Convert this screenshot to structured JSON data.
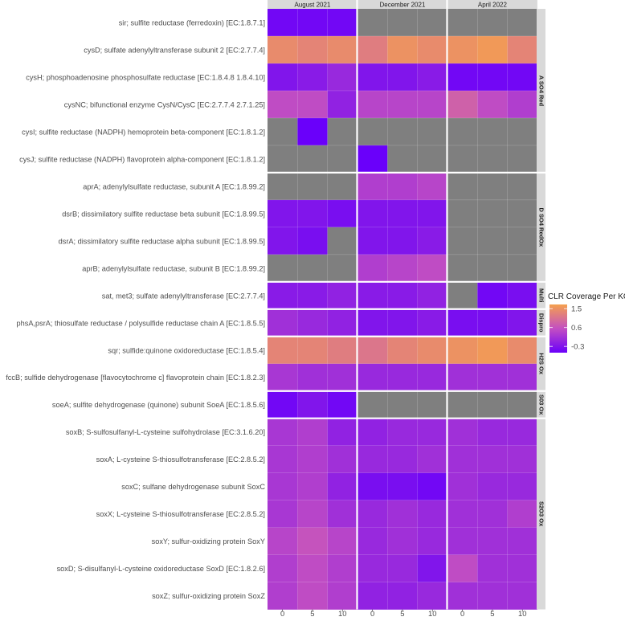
{
  "chart_data": {
    "type": "heatmap",
    "title": "",
    "xlabel": "",
    "ylabel": "",
    "facet_columns": [
      "August 2021",
      "December 2021",
      "April 2022"
    ],
    "x_ticks": [
      "0",
      "5",
      "10"
    ],
    "rows": [
      "sir; sulfite reductase (ferredoxin) [EC:1.8.7.1]",
      "cysD; sulfate adenylyltransferase subunit 2 [EC:2.7.7.4]",
      "cysH; phosphoadenosine phosphosulfate reductase [EC:1.8.4.8 1.8.4.10]",
      "cysNC; bifunctional enzyme CysN/CysC [EC:2.7.7.4 2.7.1.25]",
      "cysI; sulfite reductase (NADPH) hemoprotein beta-component [EC:1.8.1.2]",
      "cysJ; sulfite reductase (NADPH) flavoprotein alpha-component [EC:1.8.1.2]",
      "aprA; adenylylsulfate reductase, subunit A [EC:1.8.99.2]",
      "dsrB; dissimilatory sulfite reductase beta subunit [EC:1.8.99.5]",
      "dsrA; dissimilatory sulfite reductase alpha subunit [EC:1.8.99.5]",
      "aprB; adenylylsulfate reductase, subunit B [EC:1.8.99.2]",
      "sat, met3; sulfate adenylyltransferase [EC:2.7.7.4]",
      "phsA,psrA; thiosulfate reductase / polysulfide reductase chain A [EC:1.8.5.5]",
      "sqr; sulfide:quinone oxidoreductase [EC:1.8.5.4]",
      "fccB; sulfide dehydrogenase [flavocytochrome c] flavoprotein chain [EC:1.8.2.3]",
      "soeA; sulfite dehydrogenase (quinone) subunit SoeA [EC:1.8.5.6]",
      "soxB; S-sulfosulfanyl-L-cysteine sulfohydrolase [EC:3.1.6.20]",
      "soxA; L-cysteine S-thiosulfotransferase [EC:2.8.5.2]",
      "soxC; sulfane dehydrogenase subunit SoxC",
      "soxX; L-cysteine S-thiosulfotransferase [EC:2.8.5.2]",
      "soxY; sulfur-oxidizing protein SoxY",
      "soxD; S-disulfanyl-L-cysteine oxidoreductase SoxD [EC:1.8.2.6]",
      "soxZ; sulfur-oxidizing protein SoxZ"
    ],
    "row_groups": [
      {
        "name": "A SO4 Red",
        "start": 0,
        "count": 6
      },
      {
        "name": "D SO4 RedOx",
        "start": 6,
        "count": 4
      },
      {
        "name": "Multi",
        "start": 10,
        "count": 1
      },
      {
        "name": "Dispro",
        "start": 11,
        "count": 1
      },
      {
        "name": "H2S Ox",
        "start": 12,
        "count": 2
      },
      {
        "name": "S03 Ox",
        "start": 14,
        "count": 1
      },
      {
        "name": "S2O3 Ox",
        "start": 15,
        "count": 7
      }
    ],
    "values": [
      [
        -0.5,
        -0.5,
        -0.5,
        null,
        null,
        null,
        null,
        null,
        null
      ],
      [
        1.4,
        1.3,
        1.4,
        1.2,
        1.5,
        1.4,
        1.5,
        1.6,
        1.3
      ],
      [
        -0.3,
        -0.2,
        0.0,
        -0.3,
        -0.3,
        -0.2,
        -0.5,
        -0.5,
        -0.5
      ],
      [
        0.5,
        0.5,
        -0.1,
        0.4,
        0.4,
        0.4,
        0.8,
        0.5,
        0.3
      ],
      [
        null,
        -0.6,
        null,
        null,
        null,
        null,
        null,
        null,
        null
      ],
      [
        null,
        null,
        null,
        -0.6,
        null,
        null,
        null,
        null,
        null
      ],
      [
        null,
        null,
        null,
        0.3,
        0.3,
        0.4,
        null,
        null,
        null
      ],
      [
        -0.3,
        -0.3,
        -0.4,
        -0.3,
        -0.3,
        -0.3,
        null,
        null,
        null
      ],
      [
        -0.3,
        -0.4,
        null,
        -0.3,
        -0.3,
        -0.2,
        null,
        null,
        null
      ],
      [
        null,
        null,
        null,
        0.3,
        0.4,
        0.5,
        null,
        null,
        null
      ],
      [
        -0.2,
        -0.2,
        -0.1,
        -0.2,
        -0.2,
        -0.1,
        null,
        -0.5,
        -0.4
      ],
      [
        0.1,
        0.0,
        -0.1,
        -0.3,
        -0.3,
        -0.2,
        -0.4,
        -0.4,
        -0.3
      ],
      [
        1.3,
        1.3,
        1.2,
        1.1,
        1.3,
        1.4,
        1.5,
        1.6,
        1.4
      ],
      [
        0.2,
        0.1,
        0.1,
        0.0,
        0.0,
        0.0,
        0.1,
        0.1,
        0.1
      ],
      [
        -0.5,
        -0.3,
        -0.5,
        null,
        null,
        null,
        null,
        null,
        null
      ],
      [
        0.2,
        0.3,
        -0.1,
        -0.1,
        0.0,
        0.0,
        0.1,
        0.0,
        0.0
      ],
      [
        0.2,
        0.3,
        0.1,
        0.0,
        0.0,
        0.1,
        0.1,
        0.1,
        0.1
      ],
      [
        0.2,
        0.3,
        -0.1,
        -0.4,
        -0.4,
        -0.5,
        0.1,
        0.0,
        0.0
      ],
      [
        0.2,
        0.4,
        0.1,
        0.0,
        0.1,
        0.0,
        0.1,
        0.1,
        0.3
      ],
      [
        0.4,
        0.6,
        0.4,
        0.0,
        0.1,
        0.0,
        0.1,
        0.1,
        0.1
      ],
      [
        0.3,
        0.5,
        0.3,
        0.0,
        0.0,
        -0.3,
        0.5,
        0.1,
        0.1
      ],
      [
        0.3,
        0.5,
        0.3,
        -0.1,
        -0.1,
        0.0,
        0.1,
        0.1,
        0.1
      ]
    ],
    "missing_color": "#7f7f7f",
    "color_scale": {
      "low": -0.6,
      "high": 1.7,
      "low_color": "#6a00fa",
      "mid_color": "#c34fc2",
      "high_color": "#f5a04e"
    },
    "legend": {
      "title": "CLR Coverage Per KO",
      "ticks": [
        1.5,
        0.6,
        -0.3
      ],
      "tick_labels": [
        "1.5",
        "0.6",
        "-0.3"
      ],
      "placement": "right"
    }
  }
}
